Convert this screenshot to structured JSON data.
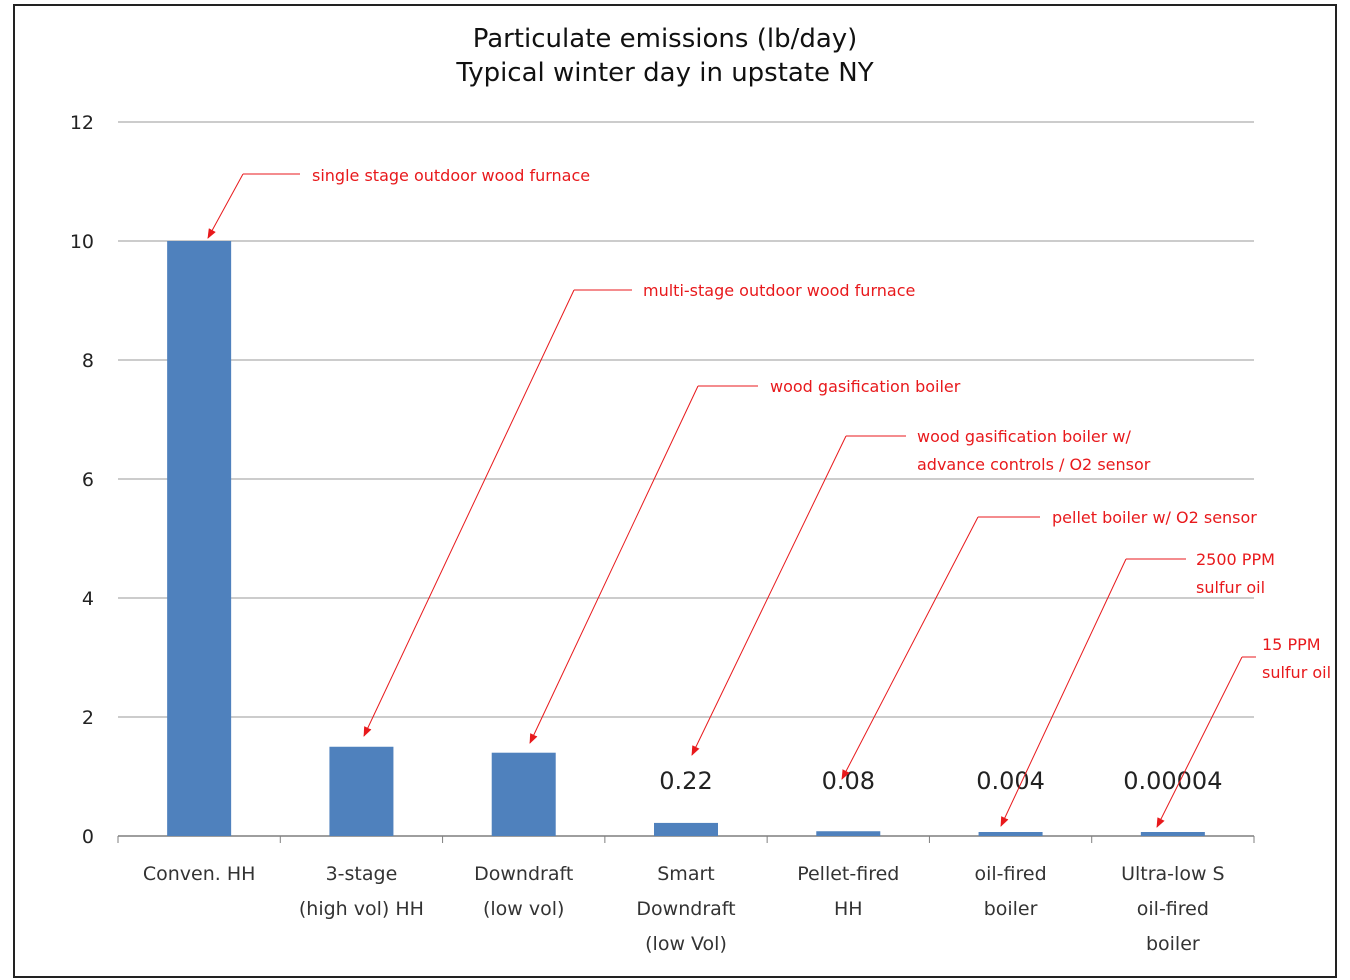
{
  "chart_data": {
    "type": "bar",
    "title": [
      "Particulate emissions (lb/day)",
      "Typical winter day in upstate NY"
    ],
    "xlabel": "",
    "ylabel": "",
    "ylim": [
      0,
      12
    ],
    "yticks": [
      "0",
      "2",
      "4",
      "6",
      "8",
      "10",
      "12"
    ],
    "grid": true,
    "legend": "none",
    "bar_color": "#4f81bd",
    "annotation_color": "#e8191c",
    "categories": [
      [
        "Conven. HH"
      ],
      [
        "3-stage",
        "(high vol) HH"
      ],
      [
        "Downdraft",
        "(low vol)"
      ],
      [
        "Smart",
        "Downdraft",
        "(low Vol)"
      ],
      [
        "Pellet-fired",
        "HH"
      ],
      [
        "oil-fired",
        "boiler"
      ],
      [
        "Ultra-low S",
        "oil-fired",
        "boiler"
      ]
    ],
    "values": [
      10,
      1.5,
      1.4,
      0.22,
      0.08,
      0.004,
      4e-05
    ],
    "data_labels": [
      "",
      "",
      "",
      "0.22",
      "0.08",
      "0.004",
      "0.00004"
    ],
    "annotations": [
      [
        "single stage outdoor wood furnace"
      ],
      [
        "multi-stage outdoor wood furnace"
      ],
      [
        "wood gasification boiler"
      ],
      [
        "wood gasification boiler w/",
        "advance controls / O2 sensor"
      ],
      [
        "pellet boiler w/ O2 sensor"
      ],
      [
        "2500 PPM",
        "sulfur oil"
      ],
      [
        "15 PPM",
        "sulfur oil"
      ]
    ]
  }
}
